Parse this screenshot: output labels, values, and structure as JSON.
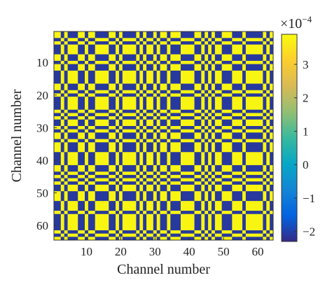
{
  "chart_data": {
    "type": "heatmap",
    "title": "",
    "xlabel": "Channel number",
    "ylabel": "Channel number",
    "xlim": [
      1,
      64
    ],
    "ylim": [
      1,
      64
    ],
    "x_ticks": [
      10,
      20,
      30,
      40,
      50,
      60
    ],
    "y_ticks": [
      10,
      20,
      30,
      40,
      50,
      60
    ],
    "y_axis_direction": "top-to-bottom",
    "colormap": "parula",
    "colormap_colors": [
      "#352a87",
      "#0363e1",
      "#1485d4",
      "#06a7c6",
      "#38b99e",
      "#92bf73",
      "#d9ba56",
      "#fcce2e",
      "#f9fb0e"
    ],
    "colorbar": {
      "multiplier": "×10",
      "exponent": "−4",
      "range": [
        -2.3,
        3.9
      ],
      "ticks": [
        -2,
        -1,
        0,
        1,
        2,
        3
      ],
      "tick_labels": [
        "−2",
        "−1",
        "0",
        "1",
        "2",
        "3"
      ],
      "placement": "right"
    },
    "pattern": {
      "high_value": 3.8,
      "low_value": -2.1,
      "channel_signs": [
        1,
        1,
        -1,
        1,
        -1,
        -1,
        -1,
        1,
        1,
        -1,
        1,
        1,
        -1,
        -1,
        -1,
        -1,
        1,
        1,
        -1,
        1,
        -1,
        -1,
        -1,
        -1,
        1,
        -1,
        1,
        -1,
        -1,
        1,
        -1,
        1,
        1,
        -1,
        1,
        1,
        1,
        -1,
        -1,
        -1,
        -1,
        1,
        1,
        -1,
        1,
        -1,
        1,
        -1,
        -1,
        1,
        1,
        1,
        -1,
        -1,
        -1,
        1,
        -1,
        -1,
        -1,
        -1,
        -1,
        1,
        -1,
        1
      ],
      "description": "matrix value = high_value when channel_signs[i] equals channel_signs[j], otherwise low_value"
    }
  }
}
